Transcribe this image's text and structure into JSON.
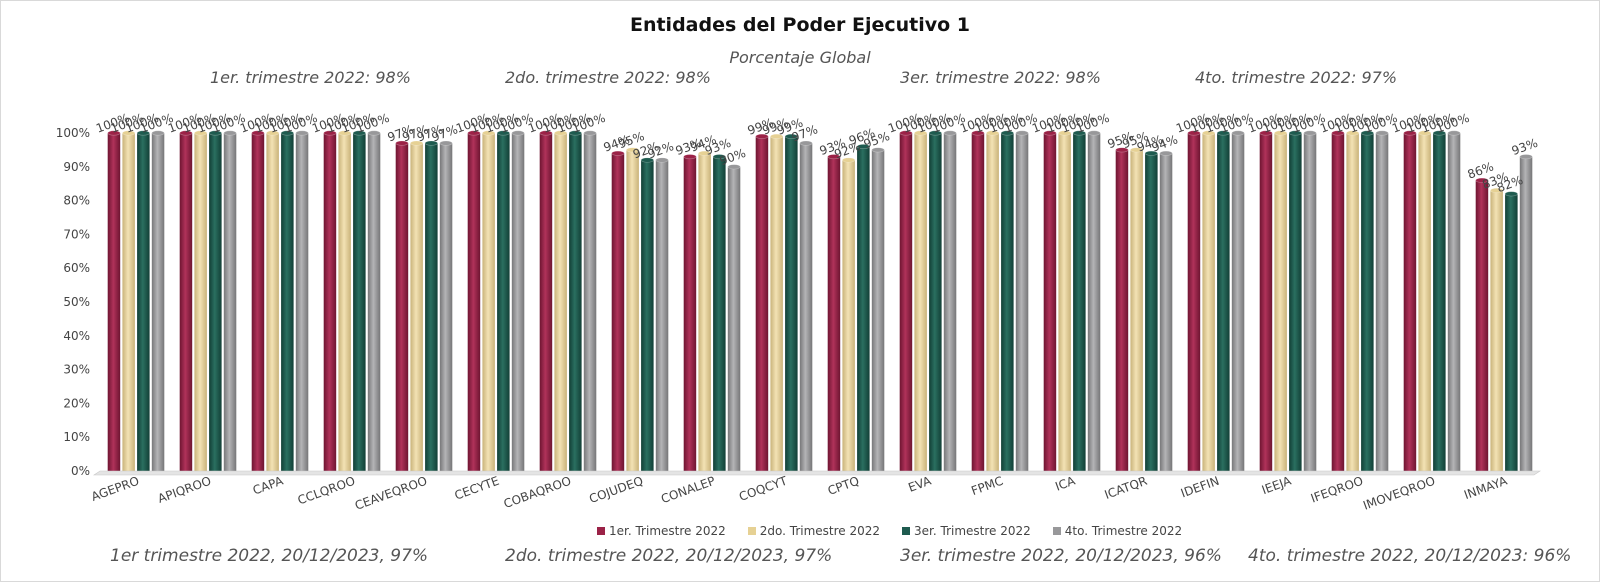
{
  "chart_data": {
    "type": "bar",
    "title": "Entidades del Poder Ejecutivo 1",
    "subtitle": "Porcentaje Global",
    "categories": [
      "AGEPRO",
      "APIQROO",
      "CAPA",
      "CCLQROO",
      "CEAVEQROO",
      "CECYTE",
      "COBAQROO",
      "COJUDEQ",
      "CONALEP",
      "COQCYT",
      "CPTQ",
      "EVA",
      "FPMC",
      "ICA",
      "ICATQR",
      "IDEFIN",
      "IEEJA",
      "IFEQROO",
      "IMOVEQROO",
      "INMAYA"
    ],
    "series": [
      {
        "name": "1er. Trimestre 2022",
        "color": "#9b2247",
        "values": [
          100,
          100,
          100,
          100,
          97,
          100,
          100,
          94,
          93,
          99,
          93,
          100,
          100,
          100,
          95,
          100,
          100,
          100,
          100,
          86
        ]
      },
      {
        "name": "2do. Trimestre 2022",
        "color": "#e6d194",
        "values": [
          100,
          100,
          100,
          100,
          97,
          100,
          100,
          95,
          94,
          99,
          92,
          100,
          100,
          100,
          95,
          100,
          100,
          100,
          100,
          83
        ]
      },
      {
        "name": "3er. Trimestre 2022",
        "color": "#1e5b4f",
        "values": [
          100,
          100,
          100,
          100,
          97,
          100,
          100,
          92,
          93,
          99,
          96,
          100,
          100,
          100,
          94,
          100,
          100,
          100,
          100,
          82
        ]
      },
      {
        "name": "4to. Trimestre 2022",
        "color": "#98989a",
        "values": [
          100,
          100,
          100,
          100,
          97,
          100,
          100,
          92,
          90,
          97,
          95,
          100,
          100,
          100,
          94,
          100,
          100,
          100,
          100,
          93
        ]
      }
    ],
    "ylim": [
      0,
      100
    ],
    "yticks": [
      "0%",
      "10%",
      "20%",
      "30%",
      "40%",
      "50%",
      "60%",
      "70%",
      "80%",
      "90%",
      "100%"
    ],
    "grid": false,
    "legend": "bottom"
  },
  "annotations": {
    "top": [
      "1er. trimestre 2022: 98%",
      "2do. trimestre 2022: 98%",
      "3er. trimestre 2022: 98%",
      "4to. trimestre 2022: 97%"
    ],
    "bottom": [
      "1er trimestre  2022,  20/12/2023, 97%",
      "2do. trimestre 2022, 20/12/2023, 97%",
      "3er. trimestre 2022, 20/12/2023, 96%",
      "4to. trimestre 2022, 20/12/2023: 96%"
    ]
  }
}
